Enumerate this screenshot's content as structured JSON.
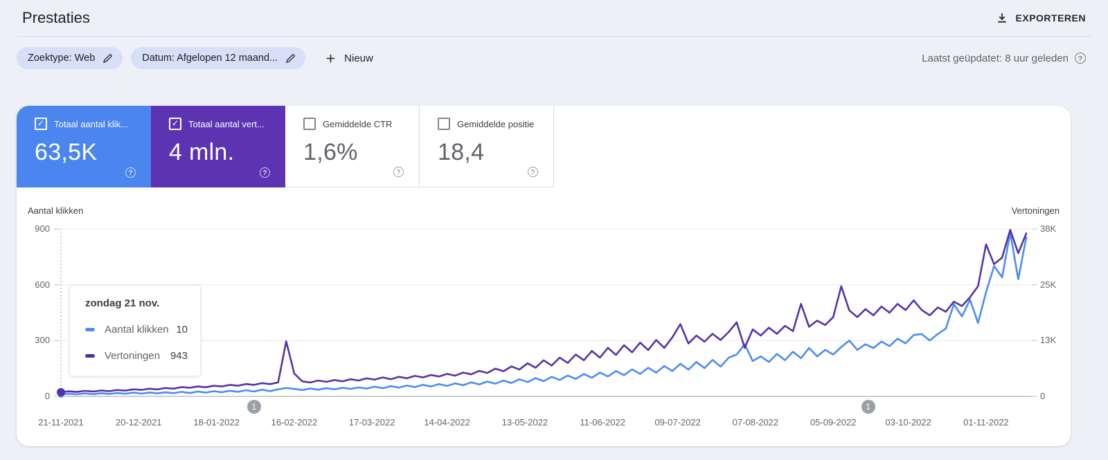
{
  "header": {
    "title": "Prestaties",
    "export_label": "EXPORTEREN"
  },
  "filters": {
    "search_type_chip": "Zoektype: Web",
    "date_chip": "Datum: Afgelopen 12 maand...",
    "new_label": "Nieuw",
    "last_updated": "Laatst geüpdatet: 8 uur geleden"
  },
  "icons": {
    "check_glyph": "✓",
    "help_glyph": "?",
    "plus_glyph": "+"
  },
  "colors": {
    "clicks": "#4c8bf5",
    "impressions": "#5632a8",
    "clicks_card": "#4a85f0",
    "impressions_card": "#5c34b2",
    "annotation": "#9aa0a6"
  },
  "metrics": [
    {
      "label": "Totaal aantal klik...",
      "value": "63,5K",
      "checked": true
    },
    {
      "label": "Totaal aantal vert...",
      "value": "4 mln.",
      "checked": true
    },
    {
      "label": "Gemiddelde CTR",
      "value": "1,6%",
      "checked": false
    },
    {
      "label": "Gemiddelde positie",
      "value": "18,4",
      "checked": false
    }
  ],
  "tooltip": {
    "title": "zondag 21 nov.",
    "rows": [
      {
        "label": "Aantal klikken",
        "value": "10",
        "color": "#4c8bf5"
      },
      {
        "label": "Vertoningen",
        "value": "943",
        "color": "#4a2d9e"
      }
    ]
  },
  "chart_data": {
    "type": "line",
    "step_days": 3,
    "y_axis": {
      "title": "Aantal klikken",
      "max": 900,
      "ticks": [
        "0",
        "300",
        "600",
        "900"
      ]
    },
    "y2_axis": {
      "title": "Vertoningen",
      "max": 38000,
      "ticks": [
        "0",
        "13K",
        "25K",
        "38K"
      ]
    },
    "x_axis": {
      "days": [
        0,
        29,
        58,
        87,
        116,
        144,
        173,
        202,
        230,
        259,
        288,
        316,
        345
      ],
      "labels": [
        "21-11-2021",
        "20-12-2021",
        "18-01-2022",
        "16-02-2022",
        "17-03-2022",
        "14-04-2022",
        "13-05-2022",
        "11-06-2022",
        "09-07-2022",
        "07-08-2022",
        "05-09-2022",
        "03-10-2022",
        "01-11-2022"
      ]
    },
    "grid": true,
    "legend_position": "none",
    "annotations": [
      {
        "label": "1",
        "day": 72
      },
      {
        "label": "1",
        "day": 301
      }
    ],
    "hover": {
      "index": 0,
      "day": 0
    },
    "series": [
      {
        "name": "Aantal klikken",
        "axis": "left",
        "color": "#4c8bf5",
        "values": [
          10,
          14,
          11,
          16,
          12,
          17,
          13,
          18,
          14,
          20,
          15,
          21,
          16,
          22,
          17,
          24,
          18,
          26,
          20,
          28,
          22,
          30,
          24,
          33,
          26,
          36,
          28,
          38,
          45,
          40,
          34,
          42,
          36,
          44,
          38,
          46,
          40,
          48,
          42,
          52,
          44,
          55,
          47,
          58,
          50,
          62,
          53,
          66,
          56,
          70,
          60,
          75,
          64,
          80,
          68,
          85,
          72,
          92,
          77,
          98,
          82,
          105,
          88,
          112,
          94,
          120,
          100,
          128,
          107,
          136,
          114,
          145,
          121,
          154,
          128,
          163,
          136,
          175,
          144,
          185,
          152,
          196,
          160,
          208,
          225,
          280,
          190,
          215,
          185,
          228,
          195,
          240,
          205,
          260,
          215,
          250,
          225,
          265,
          300,
          250,
          280,
          260,
          295,
          270,
          310,
          285,
          330,
          335,
          300,
          335,
          365,
          495,
          430,
          520,
          395,
          560,
          700,
          640,
          880,
          630,
          855
        ]
      },
      {
        "name": "Vertoningen",
        "axis": "right",
        "color": "#5632a8",
        "values": [
          943,
          1150,
          1000,
          1250,
          1100,
          1320,
          1180,
          1450,
          1300,
          1600,
          1480,
          1750,
          1580,
          1900,
          1750,
          2100,
          1950,
          2250,
          2080,
          2400,
          2250,
          2600,
          2420,
          2800,
          2600,
          3000,
          2780,
          3150,
          12500,
          5200,
          3400,
          3150,
          3600,
          3300,
          3700,
          3400,
          3900,
          3600,
          4100,
          3800,
          4300,
          3900,
          4450,
          4100,
          4650,
          4300,
          4850,
          4500,
          5100,
          4700,
          5400,
          5000,
          5800,
          5300,
          6300,
          5700,
          6800,
          6100,
          7500,
          6500,
          8200,
          7000,
          8800,
          7600,
          9500,
          8200,
          10300,
          8800,
          11000,
          9400,
          11600,
          10000,
          12200,
          10500,
          12800,
          11000,
          13400,
          16400,
          12000,
          13800,
          12400,
          14200,
          12800,
          14600,
          16800,
          11000,
          15200,
          13800,
          15600,
          14200,
          16000,
          14800,
          21000,
          15800,
          17200,
          16200,
          18000,
          25000,
          19500,
          18000,
          19800,
          18400,
          20400,
          19000,
          21000,
          19600,
          21800,
          19600,
          18400,
          20200,
          19200,
          21500,
          20500,
          22500,
          25000,
          34500,
          30000,
          31500,
          37800,
          32500,
          37000
        ]
      }
    ]
  }
}
